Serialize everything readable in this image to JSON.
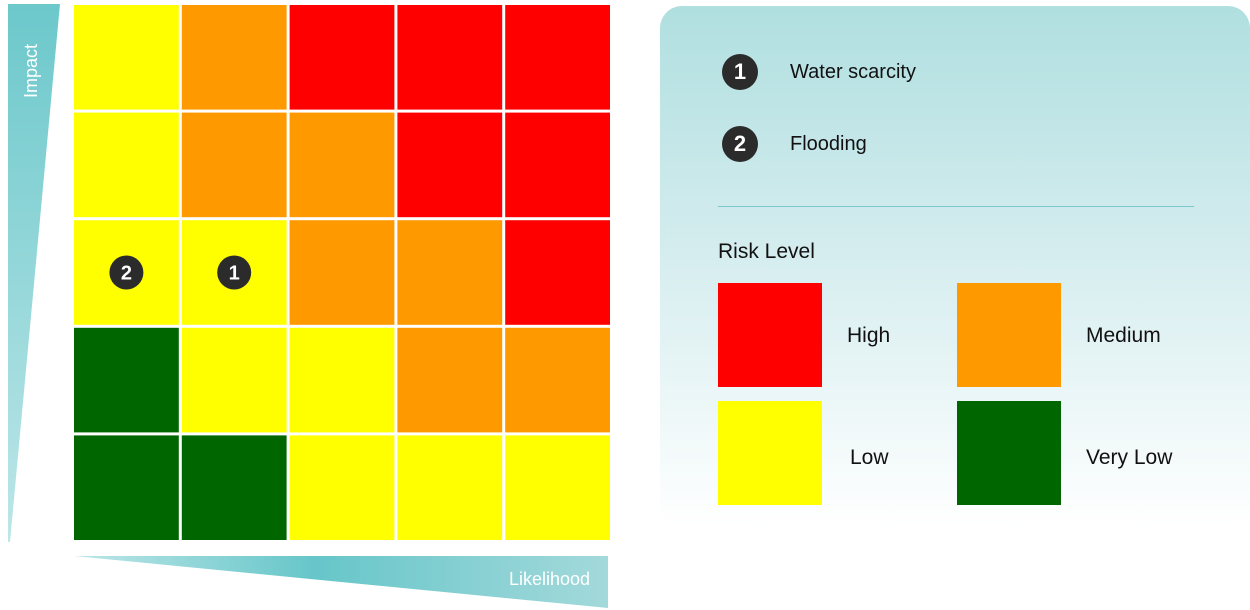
{
  "chart_data": {
    "type": "heatmap",
    "xlabel": "Likelihood",
    "ylabel": "Impact",
    "rows": 5,
    "cols": 5,
    "matrix_levels_top_to_bottom": [
      [
        "Low",
        "Medium",
        "High",
        "High",
        "High"
      ],
      [
        "Low",
        "Medium",
        "Medium",
        "High",
        "High"
      ],
      [
        "Low",
        "Low",
        "Medium",
        "Medium",
        "High"
      ],
      [
        "Very Low",
        "Low",
        "Low",
        "Medium",
        "Medium"
      ],
      [
        "Very Low",
        "Very Low",
        "Low",
        "Low",
        "Low"
      ]
    ],
    "risks": [
      {
        "number": "1",
        "name": "Water scarcity",
        "likelihood": 2,
        "impact": 3
      },
      {
        "number": "2",
        "name": "Flooding",
        "likelihood": 1,
        "impact": 3
      }
    ],
    "levels": [
      {
        "name": "High",
        "color": "#ff0000"
      },
      {
        "name": "Medium",
        "color": "#ff9900"
      },
      {
        "name": "Low",
        "color": "#ffff00"
      },
      {
        "name": "Very Low",
        "color": "#006600"
      }
    ]
  },
  "legend": {
    "risk_level_title": "Risk Level"
  },
  "colors": {
    "axis_band": "#4fbfc2",
    "marker_fill": "#2b2b2b"
  }
}
